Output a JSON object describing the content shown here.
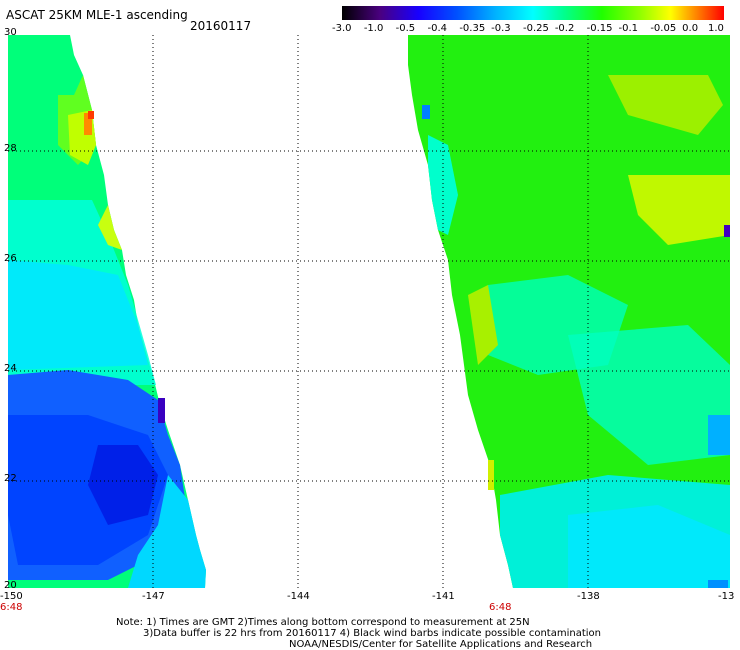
{
  "header": {
    "title": "ASCAT 25KM MLE-1 ascending",
    "date": "20160117"
  },
  "colorbar": {
    "tick_labels": [
      "-3.0",
      "-1.0",
      "-0.5",
      "-0.4",
      "-0.35",
      "-0.3",
      "-0.25",
      "-0.2",
      "-0.15",
      "-0.1",
      "-0.05",
      "0.0",
      "1.0"
    ],
    "colors": [
      "#1a0010",
      "#5a0090",
      "#2000e0",
      "#0040ff",
      "#0090ff",
      "#00d0ff",
      "#00ffff",
      "#00ff80",
      "#20ff00",
      "#a0ff00",
      "#ffff00",
      "#ff9000",
      "#ff1000"
    ]
  },
  "map": {
    "x_labels": [
      "-150",
      "-147",
      "-144",
      "-141",
      "-138",
      "-13"
    ],
    "y_labels": [
      "30",
      "28",
      "26",
      "24",
      "22",
      "20"
    ],
    "time_labels": [
      "6:48",
      "6:48"
    ],
    "swaths": {
      "left_fill": "#00ff7a",
      "right_fill": "#22f010",
      "deep_blue": "#0044ff",
      "cyan": "#00e8ff",
      "yellow_green": "#a8f000",
      "orange": "#ff7a00"
    }
  },
  "footer": {
    "line1": "Note: 1) Times are GMT 2)Times along bottom correspond to measurement at 25N",
    "line2": "3)Data buffer is 22 hrs from 20160117 4) Black wind barbs indicate possible contamination",
    "line3": "NOAA/NESDIS/Center for Satellite Applications and Research"
  }
}
